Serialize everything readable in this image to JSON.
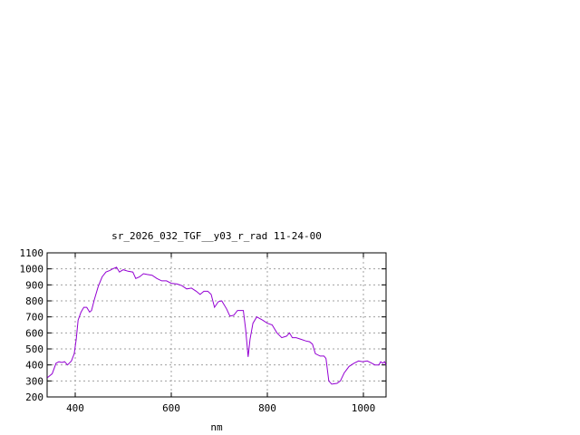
{
  "chart_data": {
    "type": "line",
    "title": "sr_2026_032_TGF__y03_r_rad 11-24-00",
    "xlabel": "nm",
    "ylabel": "",
    "xlim": [
      342,
      1047
    ],
    "ylim": [
      200,
      1100
    ],
    "xticks": [
      400,
      600,
      800,
      1000
    ],
    "yticks": [
      200,
      300,
      400,
      500,
      600,
      700,
      800,
      900,
      1000,
      1100
    ],
    "grid": true,
    "line_color": "#9400d3",
    "series": [
      {
        "x": [
          342,
          352,
          360,
          366,
          372,
          378,
          384,
          392,
          398,
          402,
          406,
          412,
          418,
          424,
          430,
          434,
          440,
          448,
          456,
          464,
          472,
          478,
          486,
          492,
          500,
          510,
          520,
          526,
          534,
          542,
          550,
          560,
          570,
          580,
          590,
          600,
          612,
          622,
          632,
          642,
          652,
          660,
          668,
          676,
          683,
          690,
          698,
          705,
          715,
          722,
          730,
          738,
          750,
          755,
          760,
          764,
          770,
          778,
          790,
          800,
          810,
          820,
          830,
          840,
          846,
          852,
          860,
          870,
          880,
          888,
          894,
          900,
          910,
          918,
          922,
          928,
          934,
          945,
          952,
          960,
          970,
          980,
          990,
          998,
          1008,
          1018,
          1024,
          1032,
          1036,
          1040,
          1044,
          1047
        ],
        "y": [
          320,
          345,
          410,
          420,
          415,
          420,
          400,
          425,
          470,
          560,
          680,
          730,
          760,
          760,
          730,
          740,
          810,
          890,
          950,
          980,
          990,
          1000,
          1010,
          980,
          995,
          985,
          980,
          940,
          950,
          970,
          965,
          960,
          940,
          925,
          925,
          910,
          905,
          895,
          875,
          880,
          860,
          840,
          860,
          860,
          840,
          760,
          795,
          800,
          750,
          705,
          710,
          740,
          740,
          620,
          450,
          560,
          660,
          700,
          680,
          660,
          650,
          600,
          570,
          580,
          600,
          570,
          570,
          560,
          550,
          545,
          530,
          470,
          455,
          455,
          440,
          300,
          280,
          285,
          300,
          350,
          390,
          410,
          425,
          420,
          425,
          410,
          400,
          400,
          420,
          410,
          420,
          400
        ]
      }
    ]
  }
}
